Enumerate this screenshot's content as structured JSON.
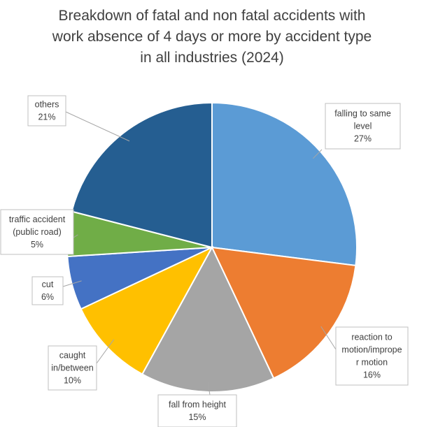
{
  "chart_data": {
    "type": "pie",
    "title": [
      "Breakdown of fatal and non fatal accidents with",
      "work absence of 4 days or more by accident type",
      "in all industries (2024)"
    ],
    "slices": [
      {
        "label": [
          "falling to same",
          "level"
        ],
        "percent": "27%",
        "value": 27,
        "color": "#5b9bd5"
      },
      {
        "label": [
          "reaction to",
          "motion/imprope",
          "r motion"
        ],
        "percent": "16%",
        "value": 16,
        "color": "#ed7d31"
      },
      {
        "label": [
          "fall from height"
        ],
        "percent": "15%",
        "value": 15,
        "color": "#a5a5a5"
      },
      {
        "label": [
          "caught",
          "in/between"
        ],
        "percent": "10%",
        "value": 10,
        "color": "#ffc000"
      },
      {
        "label": [
          "cut"
        ],
        "percent": "6%",
        "value": 6,
        "color": "#4472c4"
      },
      {
        "label": [
          "traffic accident",
          "(public road)"
        ],
        "percent": "5%",
        "value": 5,
        "color": "#70ad47"
      },
      {
        "label": [
          "others"
        ],
        "percent": "21%",
        "value": 21,
        "color": "#255e91"
      }
    ],
    "start_angle": "12 o'clock",
    "direction": "clockwise",
    "legend": "none",
    "data_labels": "callouts"
  }
}
